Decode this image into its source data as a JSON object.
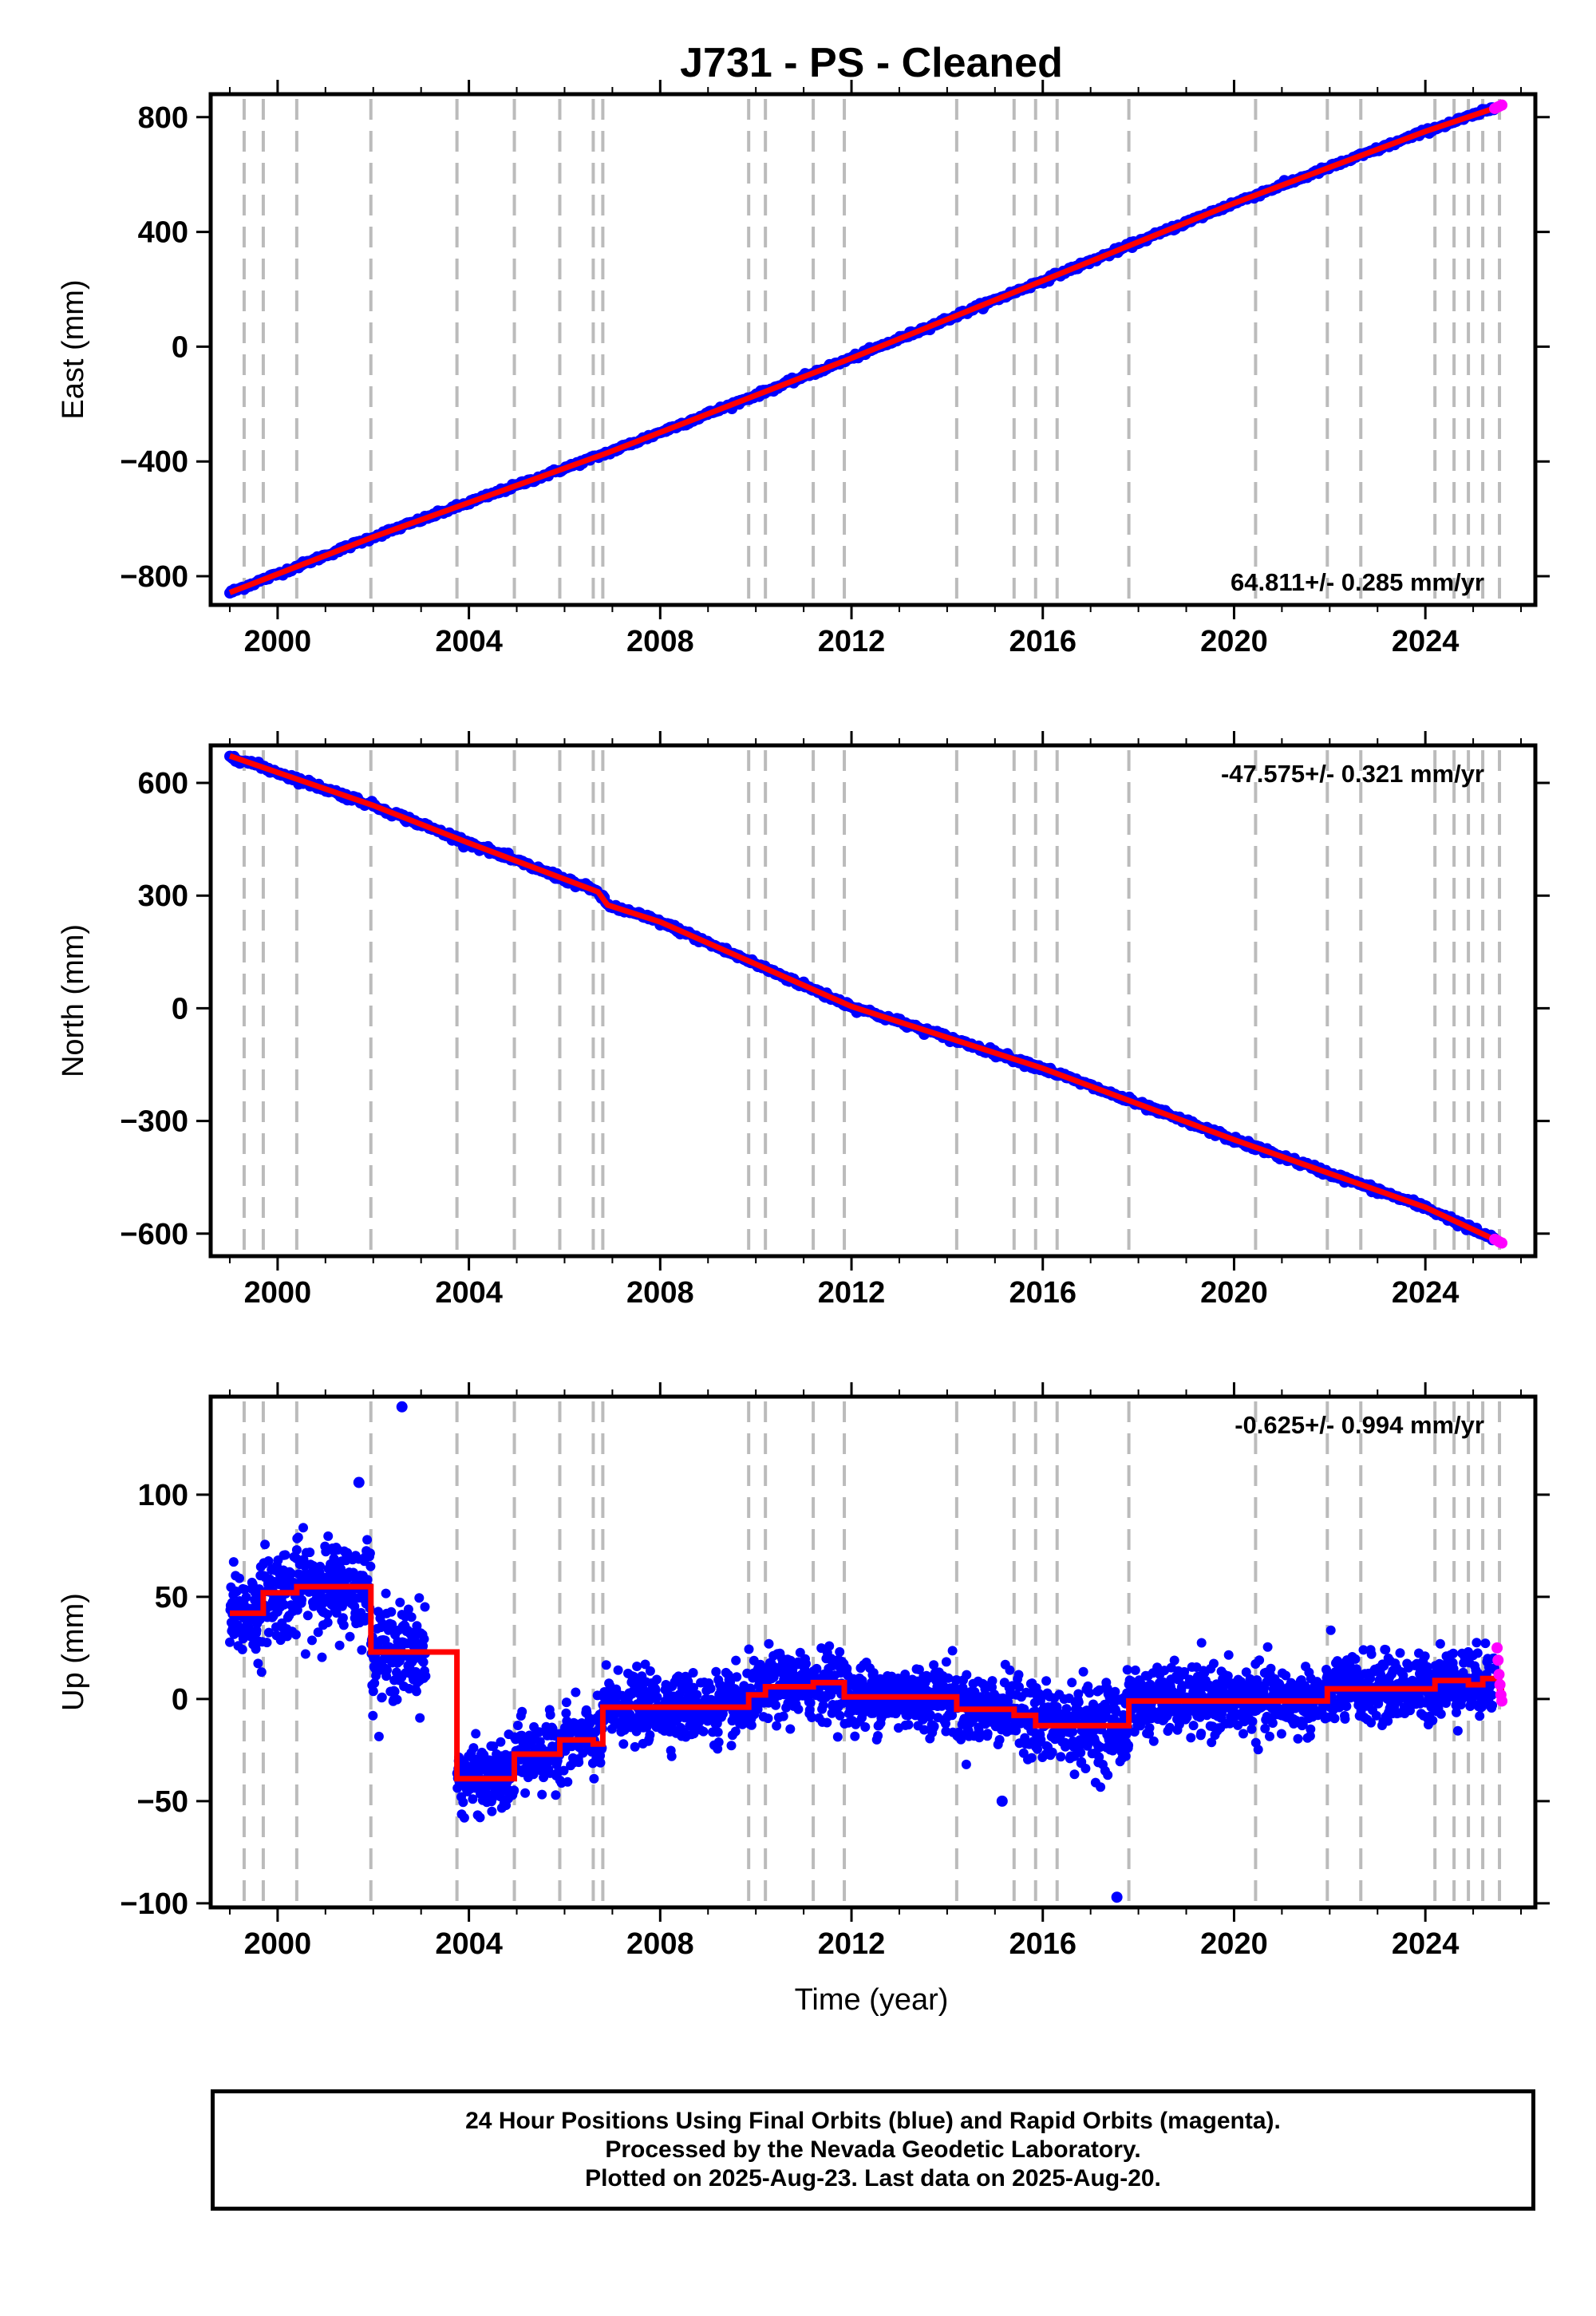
{
  "page": {
    "title": "J731  - PS - Cleaned",
    "x_axis_label": "Time (year)"
  },
  "footer": {
    "line1": "24 Hour Positions Using Final Orbits (blue) and Rapid Orbits (magenta).",
    "line2": "Processed by the Nevada Geodetic Laboratory.",
    "line3": "Plotted on 2025-Aug-23. Last data on 2025-Aug-20."
  },
  "colors": {
    "final_orbits": "#0000ff",
    "rapid_orbits": "#ff00ff",
    "model_line": "#ff0000",
    "event_lines": "#bbbbbb"
  },
  "chart_data": [
    {
      "type": "scatter",
      "name": "east",
      "ylabel": "East (mm)",
      "rate_label": "64.811+/- 0.285 mm/yr",
      "rate_position": "bottom-right",
      "xlim": [
        1998.6,
        2026.3
      ],
      "ylim": [
        -900,
        880
      ],
      "x_ticks": [
        2000,
        2004,
        2008,
        2012,
        2016,
        2020,
        2024
      ],
      "y_ticks": [
        -800,
        -400,
        0,
        400,
        800
      ],
      "event_lines": [
        1999.3,
        1999.7,
        2000.4,
        2001.95,
        2003.75,
        2004.95,
        2005.9,
        2006.6,
        2006.8,
        2009.85,
        2010.2,
        2011.2,
        2011.85,
        2014.2,
        2015.4,
        2015.85,
        2016.3,
        2017.8,
        2020.45,
        2021.95,
        2022.65,
        2024.2,
        2024.6,
        2024.9,
        2025.2,
        2025.55
      ],
      "trend": [
        [
          1999.0,
          -857
        ],
        [
          2002.0,
          -663
        ],
        [
          2006.9,
          -370
        ],
        [
          2012.0,
          -40
        ],
        [
          2016.0,
          230
        ],
        [
          2020.0,
          500
        ],
        [
          2024.0,
          750
        ],
        [
          2025.6,
          840
        ]
      ],
      "rapid_points": [
        [
          2025.45,
          830
        ],
        [
          2025.5,
          834
        ],
        [
          2025.55,
          838
        ],
        [
          2025.6,
          842
        ]
      ]
    },
    {
      "type": "scatter",
      "name": "north",
      "ylabel": "North (mm)",
      "rate_label": "-47.575+/- 0.321 mm/yr",
      "rate_position": "top-right",
      "xlim": [
        1998.6,
        2026.3
      ],
      "ylim": [
        -660,
        700
      ],
      "x_ticks": [
        2000,
        2004,
        2008,
        2012,
        2016,
        2020,
        2024
      ],
      "y_ticks": [
        -600,
        -300,
        0,
        300,
        600
      ],
      "event_lines": [
        1999.3,
        1999.7,
        2000.4,
        2001.95,
        2003.75,
        2004.95,
        2005.9,
        2006.6,
        2006.8,
        2009.85,
        2010.2,
        2011.2,
        2011.85,
        2014.2,
        2015.4,
        2015.85,
        2016.3,
        2017.8,
        2020.45,
        2021.95,
        2022.65,
        2024.2,
        2024.6,
        2024.9,
        2025.2,
        2025.55
      ],
      "trend": [
        [
          1999.0,
          672
        ],
        [
          2002.0,
          540
        ],
        [
          2004.0,
          440
        ],
        [
          2006.7,
          310
        ],
        [
          2006.9,
          275
        ],
        [
          2008.0,
          230
        ],
        [
          2012.0,
          5
        ],
        [
          2016.0,
          -160
        ],
        [
          2020.0,
          -350
        ],
        [
          2024.0,
          -530
        ],
        [
          2025.6,
          -625
        ]
      ],
      "rapid_points": [
        [
          2025.45,
          -615
        ],
        [
          2025.5,
          -618
        ],
        [
          2025.55,
          -622
        ],
        [
          2025.6,
          -625
        ]
      ]
    },
    {
      "type": "scatter",
      "name": "up",
      "ylabel": "Up (mm)",
      "rate_label": "-0.625+/- 0.994 mm/yr",
      "rate_position": "top-right",
      "xlim": [
        1998.6,
        2026.3
      ],
      "ylim": [
        -102,
        148
      ],
      "x_ticks": [
        2000,
        2004,
        2008,
        2012,
        2016,
        2020,
        2024
      ],
      "y_ticks": [
        -100,
        -50,
        0,
        50,
        100
      ],
      "event_lines": [
        1999.3,
        1999.7,
        2000.4,
        2001.95,
        2003.75,
        2004.95,
        2005.9,
        2006.6,
        2006.8,
        2009.85,
        2010.2,
        2011.2,
        2011.85,
        2014.2,
        2015.4,
        2015.85,
        2016.3,
        2017.8,
        2020.45,
        2021.95,
        2022.65,
        2024.2,
        2024.6,
        2024.9,
        2025.2,
        2025.55
      ],
      "segments": [
        {
          "from": 1999.0,
          "to": 1999.7,
          "level": 42
        },
        {
          "from": 1999.7,
          "to": 2000.4,
          "level": 52
        },
        {
          "from": 2000.4,
          "to": 2001.95,
          "level": 55
        },
        {
          "from": 2001.95,
          "to": 2002.7,
          "level": 23
        },
        {
          "from": 2002.7,
          "to": 2003.75,
          "level": 23
        },
        {
          "from": 2003.75,
          "to": 2004.95,
          "level": -39
        },
        {
          "from": 2004.95,
          "to": 2005.9,
          "level": -27
        },
        {
          "from": 2005.9,
          "to": 2006.6,
          "level": -20
        },
        {
          "from": 2006.6,
          "to": 2006.8,
          "level": -22
        },
        {
          "from": 2006.8,
          "to": 2009.85,
          "level": -4
        },
        {
          "from": 2009.85,
          "to": 2010.2,
          "level": 2
        },
        {
          "from": 2010.2,
          "to": 2011.2,
          "level": 6
        },
        {
          "from": 2011.2,
          "to": 2011.85,
          "level": 8
        },
        {
          "from": 2011.85,
          "to": 2014.2,
          "level": 1
        },
        {
          "from": 2014.2,
          "to": 2015.4,
          "level": -5
        },
        {
          "from": 2015.4,
          "to": 2015.85,
          "level": -8
        },
        {
          "from": 2015.85,
          "to": 2017.8,
          "level": -13
        },
        {
          "from": 2017.8,
          "to": 2020.45,
          "level": -1
        },
        {
          "from": 2020.45,
          "to": 2021.95,
          "level": -1
        },
        {
          "from": 2021.95,
          "to": 2024.2,
          "level": 5
        },
        {
          "from": 2024.2,
          "to": 2024.9,
          "level": 9
        },
        {
          "from": 2024.9,
          "to": 2025.2,
          "level": 7
        },
        {
          "from": 2025.2,
          "to": 2025.55,
          "level": 10
        },
        {
          "from": 2025.55,
          "to": 2025.65,
          "level": 4
        }
      ],
      "outliers": [
        [
          2002.6,
          143
        ],
        [
          2001.7,
          106
        ],
        [
          2017.55,
          -97
        ],
        [
          2015.15,
          -50
        ]
      ],
      "rapid_points": [
        [
          2025.5,
          25
        ],
        [
          2025.52,
          19
        ],
        [
          2025.54,
          12
        ],
        [
          2025.56,
          7
        ],
        [
          2025.58,
          2
        ],
        [
          2025.6,
          -1
        ]
      ]
    }
  ]
}
